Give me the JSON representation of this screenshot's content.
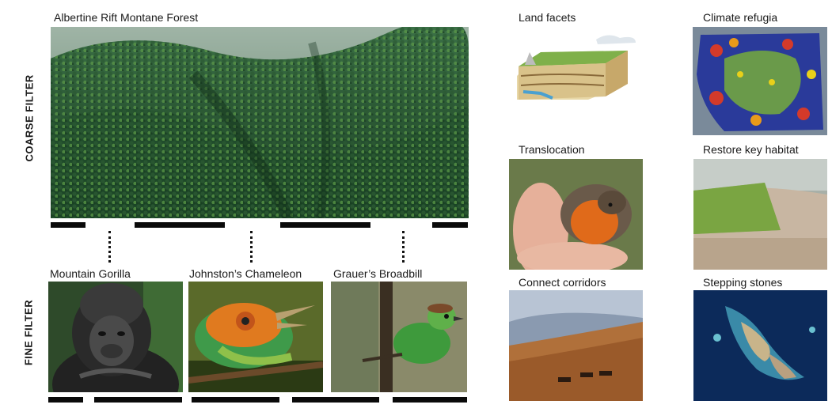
{
  "coarse": {
    "axis_label": "COARSE FILTER",
    "title": "Albertine Rift Montane Forest"
  },
  "fine": {
    "axis_label": "FINE FILTER",
    "species": [
      {
        "name": "Mountain Gorilla"
      },
      {
        "name": "Johnston’s Chameleon"
      },
      {
        "name": "Grauer’s Broadbill"
      }
    ]
  },
  "strategies": [
    {
      "label": "Land facets"
    },
    {
      "label": "Climate refugia"
    },
    {
      "label": "Translocation"
    },
    {
      "label": "Restore key habitat"
    },
    {
      "label": "Connect corridors"
    },
    {
      "label": "Stepping stones"
    }
  ],
  "colors": {
    "forest_dark": "#1f4a2c",
    "forest_light": "#4f8a3e",
    "bar": "#0a0a0a"
  }
}
